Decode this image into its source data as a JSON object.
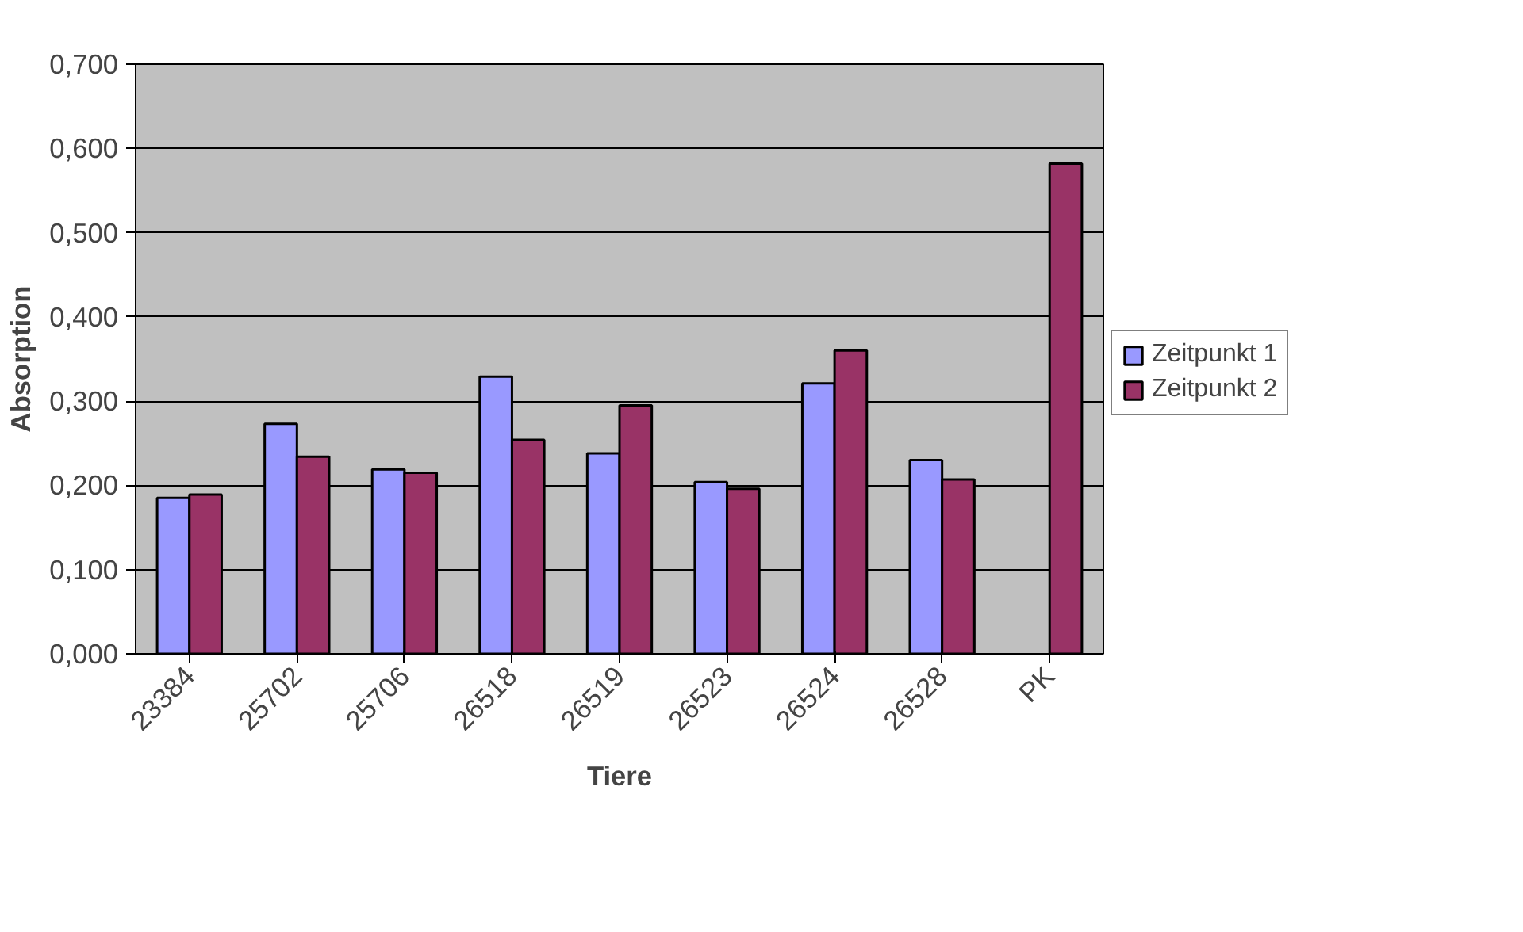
{
  "chart_data": {
    "type": "bar",
    "xlabel": "Tiere",
    "ylabel": "Absorption",
    "categories": [
      "23384",
      "25702",
      "25706",
      "26518",
      "26519",
      "26523",
      "26524",
      "26528",
      "PK"
    ],
    "series": [
      {
        "name": "Zeitpunkt 1",
        "color": "#9999ff",
        "values": [
          0.185,
          0.273,
          0.219,
          0.329,
          0.238,
          0.204,
          0.321,
          0.23,
          null
        ]
      },
      {
        "name": "Zeitpunkt 2",
        "color": "#993366",
        "values": [
          0.189,
          0.234,
          0.215,
          0.254,
          0.295,
          0.196,
          0.36,
          0.207,
          0.582
        ]
      }
    ],
    "ylim": [
      0,
      0.7
    ],
    "yticks": [
      {
        "value": 0,
        "label": "0,000"
      },
      {
        "value": 0.1,
        "label": "0,100"
      },
      {
        "value": 0.2,
        "label": "0,200"
      },
      {
        "value": 0.3,
        "label": "0,300"
      },
      {
        "value": 0.4,
        "label": "0,400"
      },
      {
        "value": 0.5,
        "label": "0,500"
      },
      {
        "value": 0.6,
        "label": "0,600"
      },
      {
        "value": 0.7,
        "label": "0,700"
      }
    ],
    "grid": "y",
    "legend": "right"
  }
}
